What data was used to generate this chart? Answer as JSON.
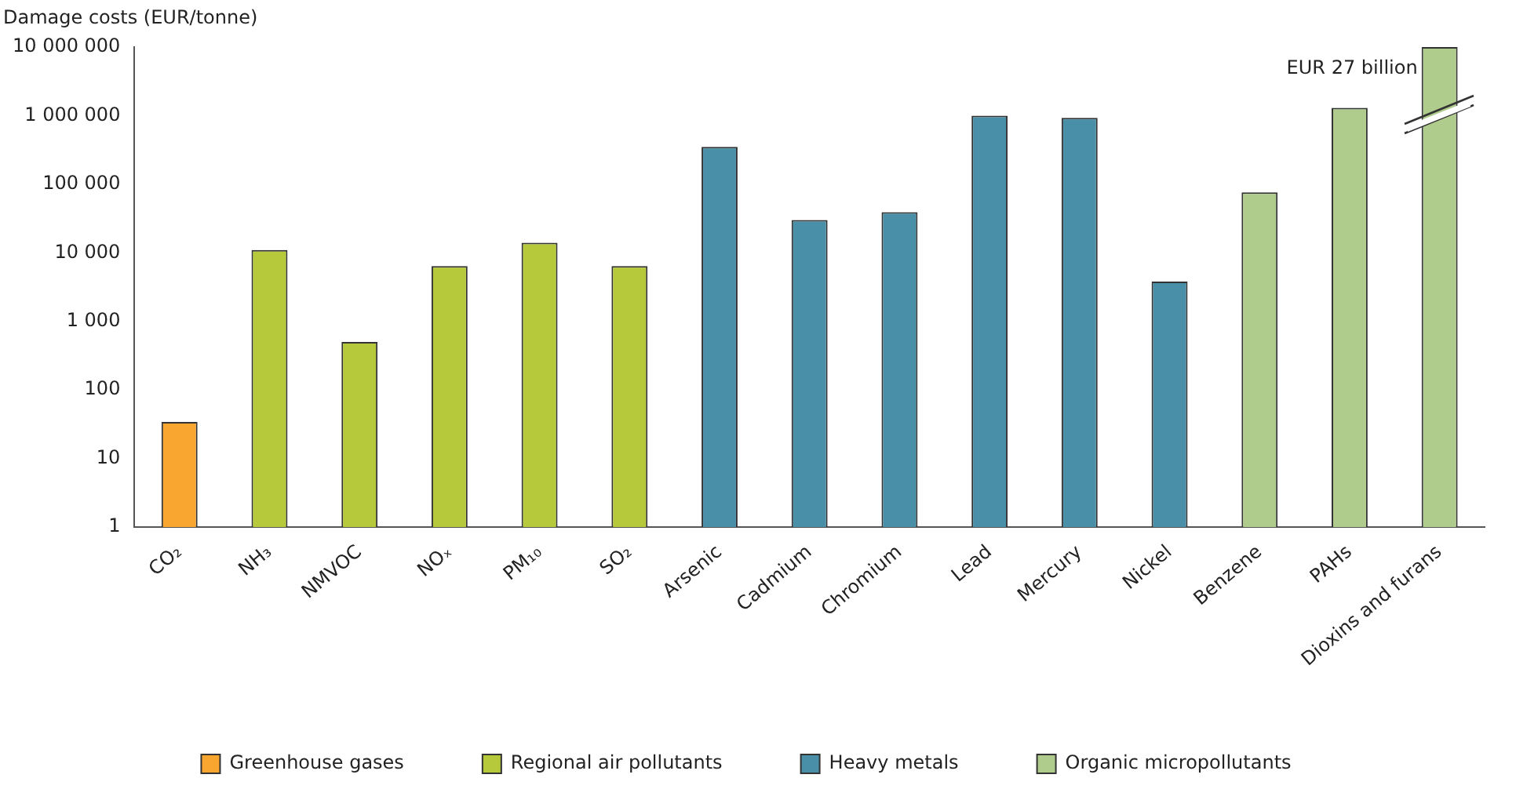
{
  "chart_data": {
    "type": "bar",
    "ylabel": "Damage costs (EUR/tonne)",
    "categories": [
      "CO₂",
      "NH₃",
      "NMVOC",
      "NOₓ",
      "PM₁₀",
      "SO₂",
      "Arsenic",
      "Cadmium",
      "Chromium",
      "Lead",
      "Mercury",
      "Nickel",
      "Benzene",
      "PAHs",
      "Dioxins and furans"
    ],
    "series": [
      {
        "name": "Greenhouse gases",
        "color": "#f9a630",
        "values": [
          34,
          null,
          null,
          null,
          null,
          null,
          null,
          null,
          null,
          null,
          null,
          null,
          null,
          null,
          null
        ]
      },
      {
        "name": "Regional air pollutants",
        "color": "#b5c93a",
        "values": [
          null,
          11000,
          500,
          6400,
          14000,
          6400,
          null,
          null,
          null,
          null,
          null,
          null,
          null,
          null,
          null
        ]
      },
      {
        "name": "Heavy metals",
        "color": "#4a8fa8",
        "values": [
          null,
          null,
          null,
          null,
          null,
          null,
          350000,
          30000,
          39000,
          1000000,
          930000,
          3800,
          null,
          null,
          null
        ]
      },
      {
        "name": "Organic micropollutants",
        "color": "#b0cc8c",
        "values": [
          null,
          null,
          null,
          null,
          null,
          null,
          null,
          null,
          null,
          null,
          null,
          null,
          76000,
          1300000,
          10000000
        ]
      }
    ],
    "log": "y",
    "ylim": [
      1,
      10000000
    ],
    "yticks": [
      1,
      10,
      100,
      {
        "value": 1000,
        "label": "1 000"
      },
      {
        "value": 10000,
        "label": "10 000"
      },
      {
        "value": 100000,
        "label": "100 000"
      },
      {
        "value": 1000000,
        "label": "1 000 000"
      },
      {
        "value": 10000000,
        "label": "10 000 000"
      }
    ],
    "grid": false,
    "legend": "bottom",
    "annotations": [
      "EUR 27 billion"
    ]
  }
}
